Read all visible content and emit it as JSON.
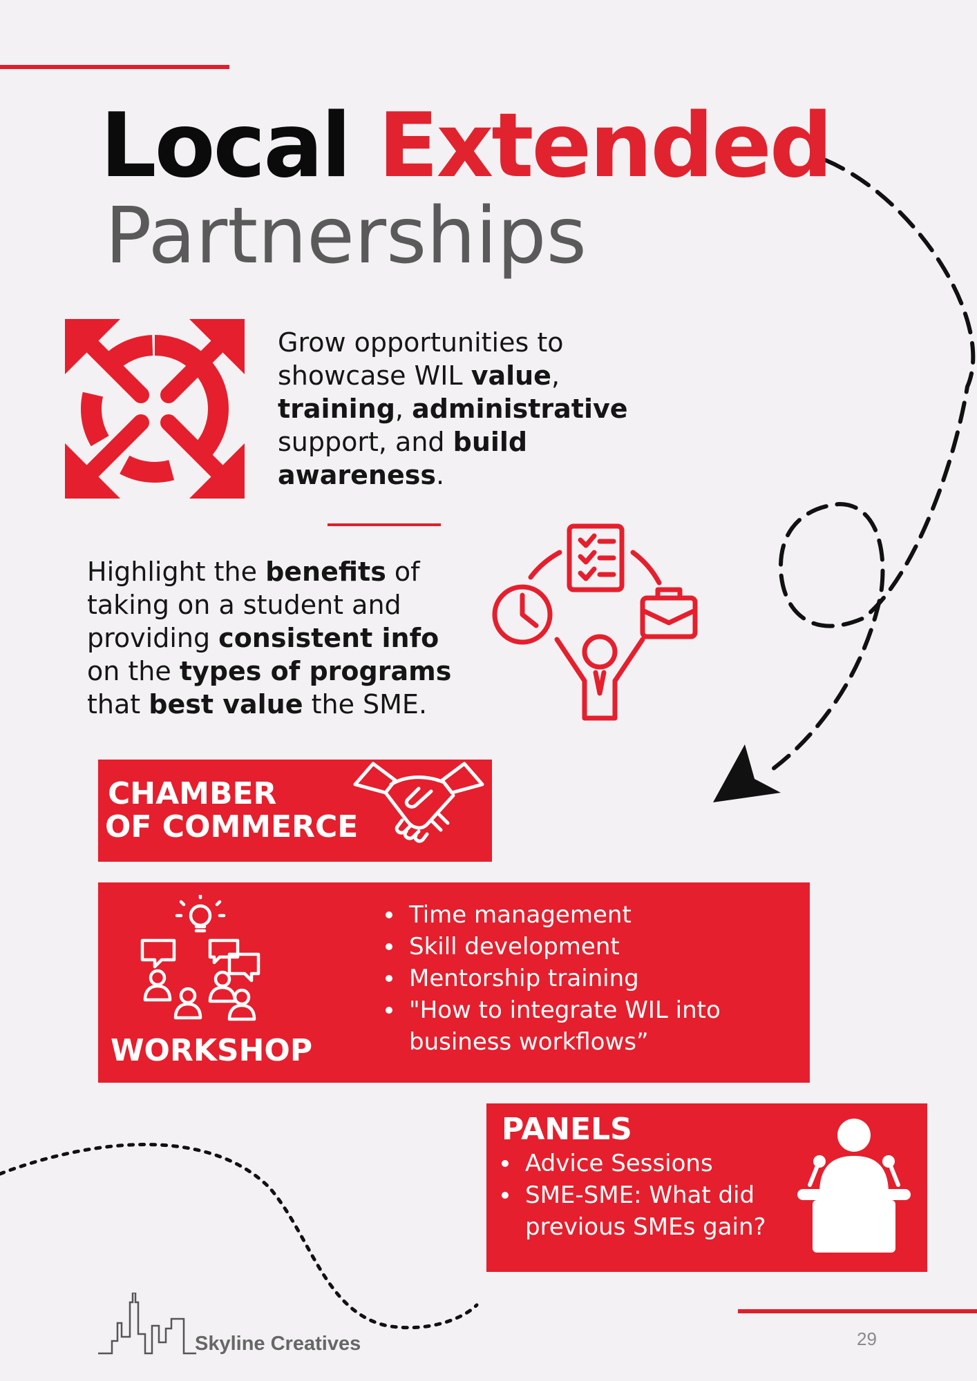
{
  "title": {
    "word1": "Local",
    "word2": "Extended",
    "line2": "Partnerships"
  },
  "section1": {
    "icon": "expand-arrows-icon",
    "parts": [
      {
        "t": "Grow opportunities to showcase WIL ",
        "b": false
      },
      {
        "t": "value",
        "b": true
      },
      {
        "t": ", ",
        "b": false
      },
      {
        "t": "training",
        "b": true
      },
      {
        "t": ", ",
        "b": false
      },
      {
        "t": "administrative",
        "b": true
      },
      {
        "t": " support, and ",
        "b": false
      },
      {
        "t": "build awareness",
        "b": true
      },
      {
        "t": ".",
        "b": false
      }
    ]
  },
  "section2": {
    "icon": "student-workflow-cycle-icon",
    "parts": [
      {
        "t": "Highlight the ",
        "b": false
      },
      {
        "t": "benefits",
        "b": true
      },
      {
        "t": " of taking on a student and providing ",
        "b": false
      },
      {
        "t": "consistent info",
        "b": true
      },
      {
        "t": " on the ",
        "b": false
      },
      {
        "t": "types of programs",
        "b": true
      },
      {
        "t": " that ",
        "b": false
      },
      {
        "t": "best value",
        "b": true
      },
      {
        "t": " the SME.",
        "b": false
      }
    ]
  },
  "chamber": {
    "line1": "CHAMBER",
    "line2": "OF COMMERCE",
    "icon": "handshake-icon"
  },
  "workshop": {
    "title": "WORKSHOP",
    "icon": "group-discussion-icon",
    "items": [
      "Time management",
      "Skill development",
      "Mentorship training",
      "\"How to integrate WIL into business workflows”"
    ]
  },
  "panels": {
    "title": "PANELS",
    "icon": "speaker-podium-icon",
    "items": [
      "Advice Sessions",
      "SME-SME: What did previous SMEs gain?"
    ]
  },
  "footer": {
    "brand": "Skyline Creatives",
    "page": "29"
  },
  "colors": {
    "accent": "#e51f2d",
    "background": "#f3f1f3",
    "title_gray": "#5a5a5a"
  }
}
